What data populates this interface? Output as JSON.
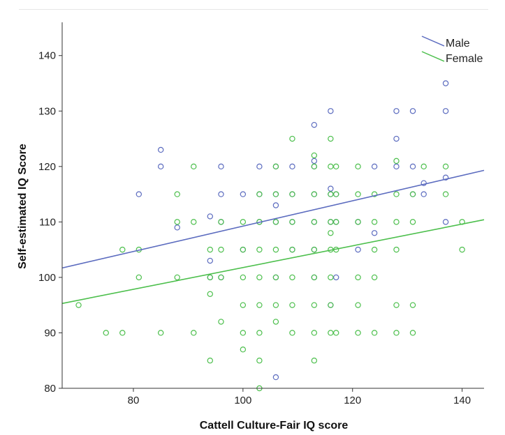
{
  "chart_data": {
    "type": "scatter",
    "title": "",
    "xlabel": "Cattell Culture-Fair IQ score",
    "ylabel": "Self-estimated IQ Score",
    "xlim": [
      67,
      144
    ],
    "ylim": [
      80,
      146
    ],
    "xticks": [
      80,
      100,
      120,
      140
    ],
    "yticks": [
      80,
      90,
      100,
      110,
      120,
      130,
      140
    ],
    "legend_position": "top-right",
    "colors": {
      "Male": "#5b6bbf",
      "Female": "#4cbf4c"
    },
    "series": [
      {
        "name": "Male",
        "fit_line": {
          "x": [
            67,
            144
          ],
          "y": [
            101.7,
            119.3
          ]
        },
        "points": [
          [
            81,
            115
          ],
          [
            85,
            123
          ],
          [
            85,
            120
          ],
          [
            88,
            109
          ],
          [
            94,
            111
          ],
          [
            94,
            103
          ],
          [
            94,
            100
          ],
          [
            96,
            120
          ],
          [
            96,
            115
          ],
          [
            96,
            110
          ],
          [
            96,
            100
          ],
          [
            100,
            115
          ],
          [
            100,
            105
          ],
          [
            103,
            120
          ],
          [
            103,
            115
          ],
          [
            103,
            110
          ],
          [
            106,
            120
          ],
          [
            106,
            115
          ],
          [
            106,
            113
          ],
          [
            106,
            110
          ],
          [
            106,
            100
          ],
          [
            106,
            82
          ],
          [
            109,
            120
          ],
          [
            109,
            115
          ],
          [
            109,
            110
          ],
          [
            109,
            105
          ],
          [
            113,
            127.5
          ],
          [
            113,
            121
          ],
          [
            113,
            120
          ],
          [
            113,
            115
          ],
          [
            113,
            110
          ],
          [
            113,
            105
          ],
          [
            113,
            100
          ],
          [
            116,
            130
          ],
          [
            116,
            116
          ],
          [
            116,
            115
          ],
          [
            116,
            110
          ],
          [
            116,
            95
          ],
          [
            117,
            115
          ],
          [
            117,
            110
          ],
          [
            117,
            100
          ],
          [
            121,
            110
          ],
          [
            121,
            105
          ],
          [
            124,
            120
          ],
          [
            124,
            108
          ],
          [
            128,
            130
          ],
          [
            128,
            125
          ],
          [
            128,
            120
          ],
          [
            131,
            130
          ],
          [
            131,
            120
          ],
          [
            131,
            115
          ],
          [
            133,
            117
          ],
          [
            133,
            115
          ],
          [
            137,
            135
          ],
          [
            137,
            130
          ],
          [
            137,
            118
          ],
          [
            137,
            110
          ]
        ]
      },
      {
        "name": "Female",
        "fit_line": {
          "x": [
            67,
            144
          ],
          "y": [
            95.3,
            110.4
          ]
        },
        "points": [
          [
            70,
            95
          ],
          [
            75,
            90
          ],
          [
            78,
            105
          ],
          [
            78,
            90
          ],
          [
            81,
            105
          ],
          [
            81,
            100
          ],
          [
            85,
            90
          ],
          [
            88,
            115
          ],
          [
            88,
            110
          ],
          [
            88,
            100
          ],
          [
            91,
            120
          ],
          [
            91,
            110
          ],
          [
            91,
            90
          ],
          [
            94,
            105
          ],
          [
            94,
            100
          ],
          [
            94,
            97
          ],
          [
            94,
            85
          ],
          [
            96,
            110
          ],
          [
            96,
            105
          ],
          [
            96,
            100
          ],
          [
            96,
            92
          ],
          [
            100,
            110
          ],
          [
            100,
            105
          ],
          [
            100,
            100
          ],
          [
            100,
            95
          ],
          [
            100,
            90
          ],
          [
            100,
            87
          ],
          [
            103,
            115
          ],
          [
            103,
            110
          ],
          [
            103,
            105
          ],
          [
            103,
            100
          ],
          [
            103,
            95
          ],
          [
            103,
            90
          ],
          [
            103,
            85
          ],
          [
            103,
            80
          ],
          [
            106,
            120
          ],
          [
            106,
            115
          ],
          [
            106,
            110
          ],
          [
            106,
            105
          ],
          [
            106,
            100
          ],
          [
            106,
            95
          ],
          [
            106,
            92
          ],
          [
            109,
            125
          ],
          [
            109,
            115
          ],
          [
            109,
            110
          ],
          [
            109,
            105
          ],
          [
            109,
            100
          ],
          [
            109,
            95
          ],
          [
            109,
            90
          ],
          [
            113,
            122
          ],
          [
            113,
            120
          ],
          [
            113,
            115
          ],
          [
            113,
            110
          ],
          [
            113,
            105
          ],
          [
            113,
            100
          ],
          [
            113,
            95
          ],
          [
            113,
            90
          ],
          [
            113,
            85
          ],
          [
            116,
            125
          ],
          [
            116,
            120
          ],
          [
            116,
            115
          ],
          [
            116,
            110
          ],
          [
            116,
            108
          ],
          [
            116,
            105
          ],
          [
            116,
            100
          ],
          [
            116,
            95
          ],
          [
            116,
            90
          ],
          [
            117,
            120
          ],
          [
            117,
            115
          ],
          [
            117,
            110
          ],
          [
            117,
            105
          ],
          [
            117,
            90
          ],
          [
            121,
            120
          ],
          [
            121,
            115
          ],
          [
            121,
            110
          ],
          [
            121,
            100
          ],
          [
            121,
            95
          ],
          [
            121,
            90
          ],
          [
            124,
            115
          ],
          [
            124,
            110
          ],
          [
            124,
            105
          ],
          [
            124,
            100
          ],
          [
            124,
            90
          ],
          [
            128,
            121
          ],
          [
            128,
            115
          ],
          [
            128,
            110
          ],
          [
            128,
            105
          ],
          [
            128,
            95
          ],
          [
            128,
            90
          ],
          [
            131,
            115
          ],
          [
            131,
            110
          ],
          [
            131,
            95
          ],
          [
            131,
            90
          ],
          [
            133,
            120
          ],
          [
            137,
            120
          ],
          [
            137,
            115
          ],
          [
            140,
            110
          ],
          [
            140,
            105
          ]
        ]
      }
    ]
  }
}
